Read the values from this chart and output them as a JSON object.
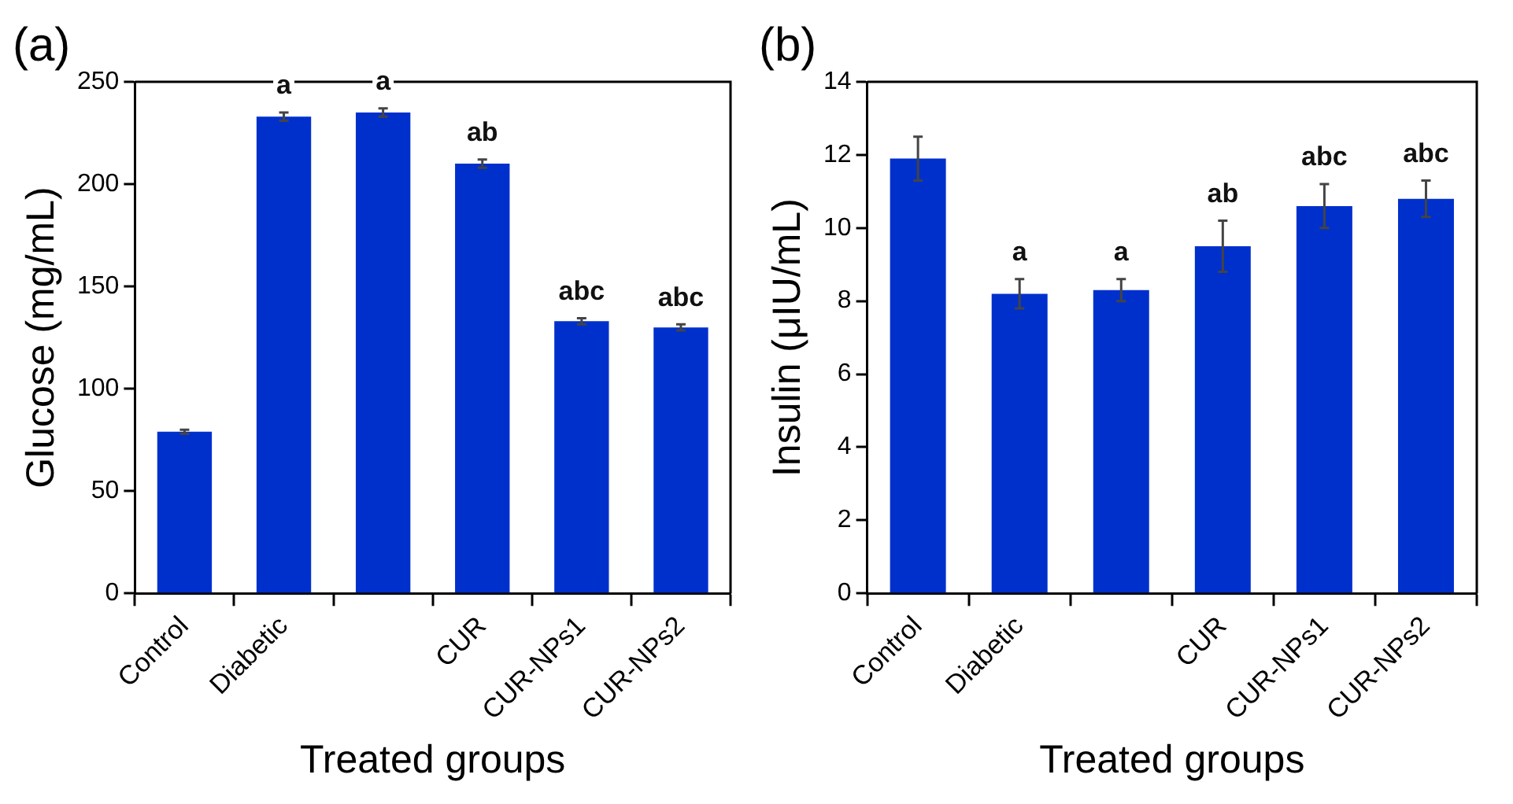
{
  "chart_data": [
    {
      "type": "bar",
      "title": "(a)",
      "xlabel": "Treated groups",
      "ylabel": "Glucose (mg/mL)",
      "categories": [
        "Control",
        "Diabetic",
        null,
        "CUR",
        "CUR-NPs1",
        "CUR-NPs2"
      ],
      "values": [
        79,
        233,
        235,
        210,
        133,
        130
      ],
      "errors": [
        1,
        2,
        2,
        2,
        1.5,
        1.5
      ],
      "value_labels": [
        null,
        "a",
        "a",
        "ab",
        "abc",
        "abc"
      ],
      "color": "#0030cc",
      "ylim": [
        0,
        250
      ],
      "yticks": [
        0,
        50,
        100,
        150,
        200,
        250
      ],
      "grid": false,
      "legend": false
    },
    {
      "type": "bar",
      "title": "(b)",
      "xlabel": "Treated groups",
      "ylabel": "Insulin (μIU/mL)",
      "categories": [
        "Control",
        "Diabetic",
        null,
        "CUR",
        "CUR-NPs1",
        "CUR-NPs2"
      ],
      "values": [
        11.9,
        8.2,
        8.3,
        9.5,
        10.6,
        10.8
      ],
      "errors": [
        0.6,
        0.4,
        0.3,
        0.7,
        0.6,
        0.5
      ],
      "value_labels": [
        null,
        "a",
        "a",
        "ab",
        "abc",
        "abc"
      ],
      "color": "#0030cc",
      "ylim": [
        0,
        14
      ],
      "yticks": [
        0,
        2,
        4,
        6,
        8,
        10,
        12,
        14
      ],
      "grid": false,
      "legend": false
    }
  ]
}
